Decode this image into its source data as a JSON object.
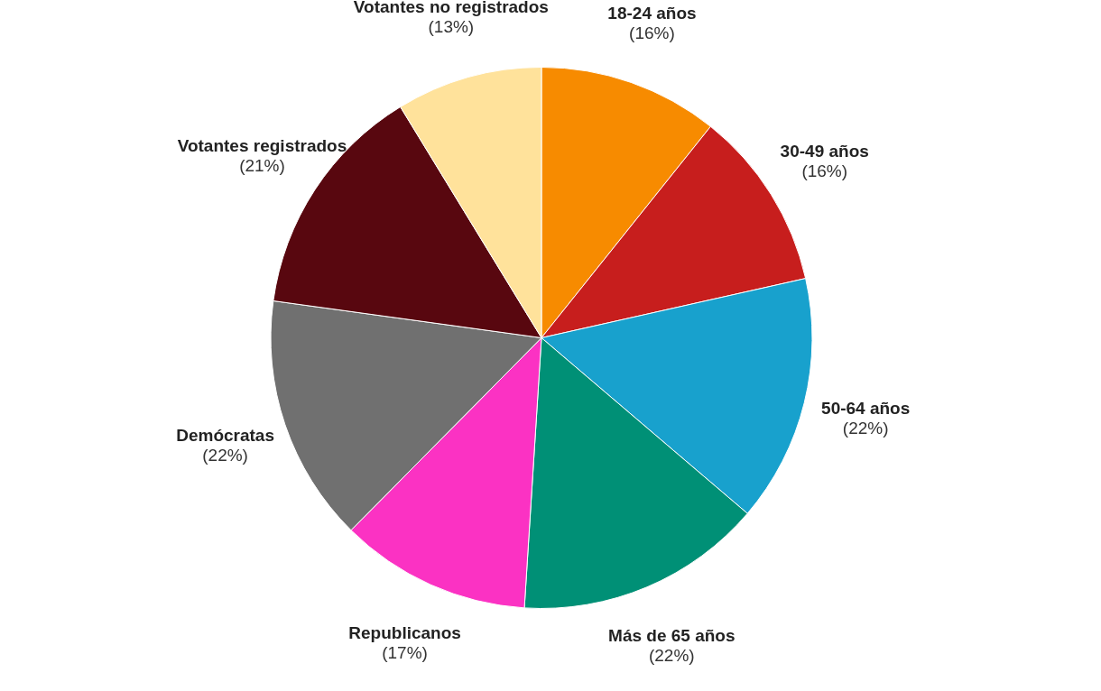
{
  "chart_data": {
    "type": "pie",
    "categories": [
      "18-24 años",
      "30-49 años",
      "50-64 años",
      "Más de 65 años",
      "Republicanos",
      "Demócratas",
      "Votantes registrados",
      "Votantes no registrados"
    ],
    "values": [
      16,
      16,
      22,
      22,
      17,
      22,
      21,
      13
    ],
    "value_labels": [
      "(16%)",
      "(16%)",
      "(22%)",
      "(22%)",
      "(17%)",
      "(22%)",
      "(21%)",
      "(13%)"
    ],
    "colors": [
      "#f78b00",
      "#c71e1d",
      "#18a1cd",
      "#009076",
      "#fb32c3",
      "#707070",
      "#58070f",
      "#ffe29b"
    ]
  }
}
